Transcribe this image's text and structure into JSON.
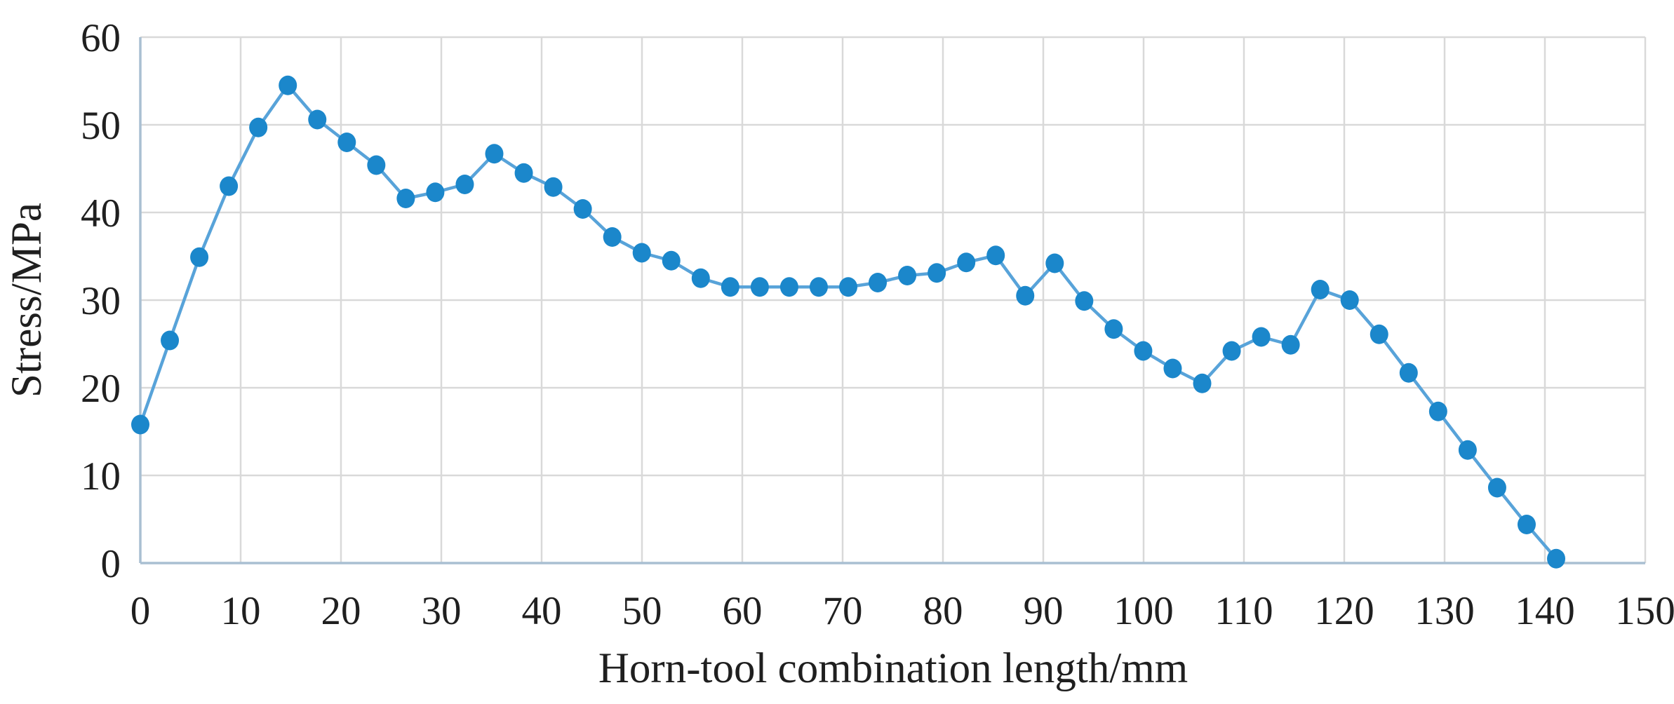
{
  "figure": {
    "background": "#ffffff",
    "text_color": "#1f1f1f",
    "gridline_color": "#d9d9d9",
    "axis_line_color": "#a9bfd2"
  },
  "chart_data": {
    "type": "line",
    "title": "",
    "xlabel": "Horn-tool combination length/mm",
    "ylabel": "Stress/MPa",
    "xlim": [
      0,
      150
    ],
    "ylim": [
      0,
      60
    ],
    "x_ticks": [
      0,
      10,
      20,
      30,
      40,
      50,
      60,
      70,
      80,
      90,
      100,
      110,
      120,
      130,
      140,
      150
    ],
    "y_ticks": [
      0,
      10,
      20,
      30,
      40,
      50,
      60
    ],
    "grid": true,
    "legend_position": "none",
    "series": [
      {
        "name": "Stress",
        "marker": "circle",
        "line_color": "#58a3d9",
        "marker_color": "#1b87cb",
        "x": [
          0,
          2.94,
          5.88,
          8.82,
          11.76,
          14.7,
          17.64,
          20.58,
          23.52,
          26.46,
          29.4,
          32.34,
          35.28,
          38.22,
          41.16,
          44.1,
          47.04,
          49.98,
          52.92,
          55.86,
          58.8,
          61.74,
          64.68,
          67.62,
          70.56,
          73.5,
          76.44,
          79.38,
          82.32,
          85.26,
          88.2,
          91.14,
          94.08,
          97.02,
          99.96,
          102.9,
          105.84,
          108.78,
          111.72,
          114.66,
          117.6,
          120.54,
          123.48,
          126.42,
          129.36,
          132.3,
          135.24,
          138.18,
          141.12
        ],
        "y": [
          15.8,
          25.4,
          34.9,
          43.0,
          49.7,
          54.5,
          50.6,
          48.0,
          45.4,
          41.6,
          42.3,
          43.2,
          46.7,
          44.5,
          42.9,
          40.4,
          37.2,
          35.4,
          34.5,
          32.5,
          31.5,
          31.5,
          31.5,
          31.5,
          31.5,
          32.0,
          32.8,
          33.1,
          34.3,
          35.1,
          30.5,
          34.2,
          29.9,
          26.7,
          24.2,
          22.2,
          20.5,
          24.2,
          25.8,
          24.9,
          31.2,
          30.0,
          26.1,
          21.7,
          17.3,
          12.9,
          8.6,
          4.4,
          0.5
        ]
      }
    ]
  }
}
